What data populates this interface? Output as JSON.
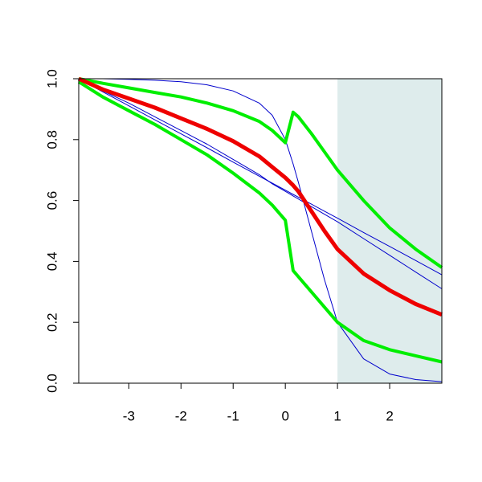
{
  "chart_data": {
    "type": "line",
    "x": [
      -3.96,
      -3.5,
      -3,
      -2.5,
      -2,
      -1.5,
      -1,
      -0.5,
      -0.25,
      0,
      0.15,
      0.25,
      0.5,
      0.75,
      1,
      1.5,
      2,
      2.5,
      3
    ],
    "series": [
      {
        "color": "#0000cc",
        "width": 1,
        "values": [
          1.0,
          1.0,
          0.998,
          0.995,
          0.99,
          0.98,
          0.96,
          0.92,
          0.88,
          0.8,
          0.72,
          0.66,
          0.5,
          0.34,
          0.2,
          0.08,
          0.03,
          0.012,
          0.005
        ]
      },
      {
        "color": "#0000cc",
        "width": 1,
        "values": [
          1.0,
          0.957,
          0.911,
          0.865,
          0.819,
          0.773,
          0.726,
          0.68,
          0.657,
          0.634,
          0.62,
          0.611,
          0.588,
          0.565,
          0.542,
          0.495,
          0.449,
          0.403,
          0.356
        ]
      },
      {
        "color": "#0000cc",
        "width": 1,
        "values": [
          1.0,
          0.96,
          0.92,
          0.875,
          0.83,
          0.785,
          0.735,
          0.685,
          0.655,
          0.63,
          0.615,
          0.605,
          0.58,
          0.555,
          0.53,
          0.475,
          0.42,
          0.365,
          0.31
        ]
      },
      {
        "color": "#00ee00",
        "width": 4,
        "values": [
          1.0,
          0.985,
          0.97,
          0.955,
          0.94,
          0.92,
          0.895,
          0.86,
          0.83,
          0.79,
          0.89,
          0.875,
          0.82,
          0.76,
          0.7,
          0.6,
          0.51,
          0.44,
          0.38
        ]
      },
      {
        "color": "#00ee00",
        "width": 4,
        "values": [
          0.99,
          0.94,
          0.895,
          0.85,
          0.8,
          0.75,
          0.69,
          0.625,
          0.585,
          0.535,
          0.37,
          0.35,
          0.3,
          0.25,
          0.2,
          0.14,
          0.11,
          0.09,
          0.07
        ]
      },
      {
        "color": "#ee0000",
        "width": 5,
        "values": [
          1.0,
          0.965,
          0.935,
          0.905,
          0.87,
          0.835,
          0.795,
          0.745,
          0.71,
          0.675,
          0.65,
          0.63,
          0.565,
          0.5,
          0.44,
          0.36,
          0.305,
          0.26,
          0.225
        ]
      }
    ],
    "xlim": [
      -3.96,
      3
    ],
    "ylim": [
      0,
      1
    ],
    "xticks": [
      -3,
      -2,
      -1,
      0,
      1,
      2
    ],
    "yticks": [
      {
        "value": 0,
        "label": "0.0"
      },
      0.2,
      0.4,
      0.6,
      0.8,
      {
        "value": 1,
        "label": "1.0"
      }
    ],
    "shade": {
      "xlim": [
        1,
        3
      ],
      "color": "#deecec"
    }
  }
}
